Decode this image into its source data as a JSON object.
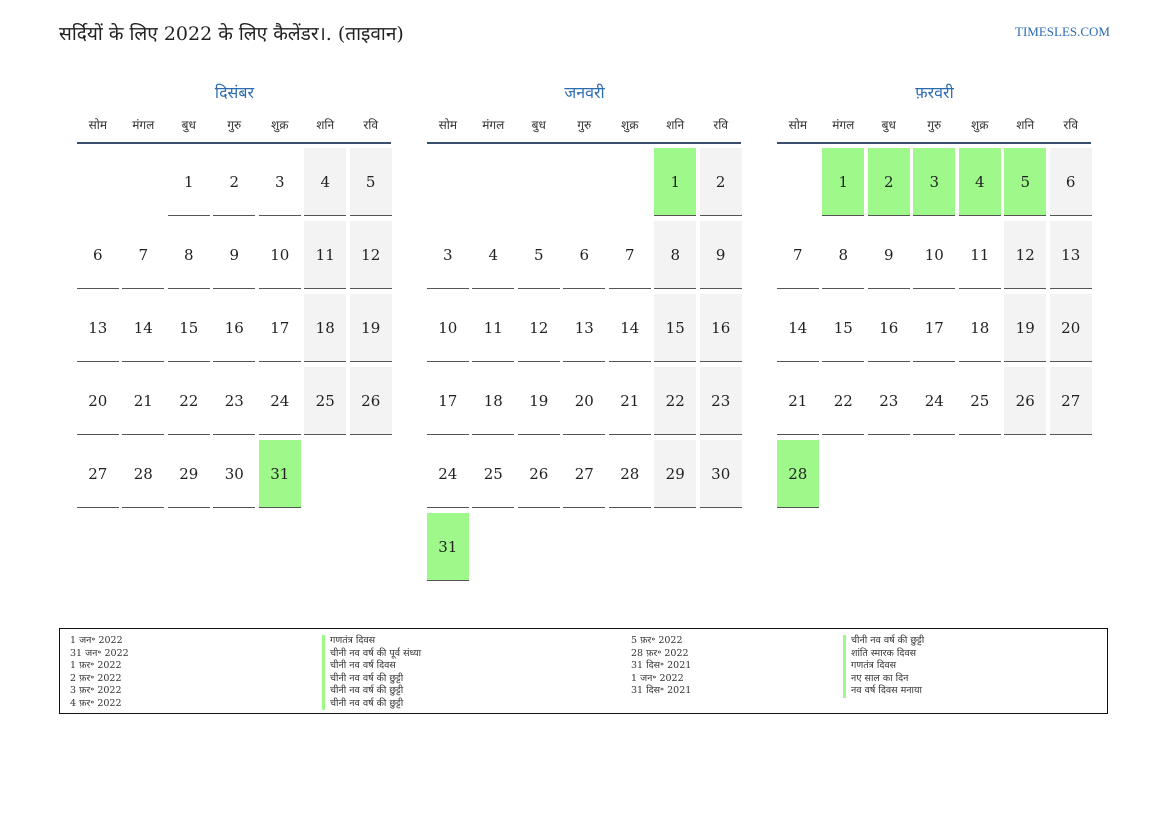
{
  "header": {
    "title": "सर्दियों के लिए 2022 के लिए कैलेंडर।. (ताइवान)",
    "site": "TIMESLES.COM"
  },
  "weekdays": [
    "सोम",
    "मंगल",
    "बुध",
    "गुरु",
    "शुक्र",
    "शनि",
    "रवि"
  ],
  "colors": {
    "holiday": "#9ef98a",
    "weekend": "#f3f3f3",
    "accent": "#2b6cb0"
  },
  "months": [
    {
      "name": "दिसंबर",
      "offset": 2,
      "days": 31,
      "holidays": [
        31
      ]
    },
    {
      "name": "जनवरी",
      "offset": 5,
      "days": 31,
      "holidays": [
        1,
        31
      ]
    },
    {
      "name": "फ़रवरी",
      "offset": 1,
      "days": 28,
      "holidays": [
        1,
        2,
        3,
        4,
        5,
        28
      ]
    }
  ],
  "legend": {
    "left": [
      {
        "date": "1 जन॰ 2022",
        "name": "गणतंत्र दिवस"
      },
      {
        "date": "31 जन॰ 2022",
        "name": "चीनी नव वर्ष की पूर्व संध्या"
      },
      {
        "date": "1 फ़र॰ 2022",
        "name": "चीनी नव वर्ष दिवस"
      },
      {
        "date": "2 फ़र॰ 2022",
        "name": "चीनी नव वर्ष की छुट्टी"
      },
      {
        "date": "3 फ़र॰ 2022",
        "name": "चीनी नव वर्ष की छुट्टी"
      },
      {
        "date": "4 फ़र॰ 2022",
        "name": "चीनी नव वर्ष की छुट्टी"
      }
    ],
    "right": [
      {
        "date": "5 फ़र॰ 2022",
        "name": "चीनी नव वर्ष की छुट्टी"
      },
      {
        "date": "28 फ़र॰ 2022",
        "name": "शांति स्मारक दिवस"
      },
      {
        "date": "31 दिस॰ 2021",
        "name": "गणतंत्र दिवस"
      },
      {
        "date": "1 जन॰ 2022",
        "name": "नए साल का दिन"
      },
      {
        "date": "31 दिस॰ 2021",
        "name": "नव वर्ष दिवस मनाया"
      }
    ]
  }
}
